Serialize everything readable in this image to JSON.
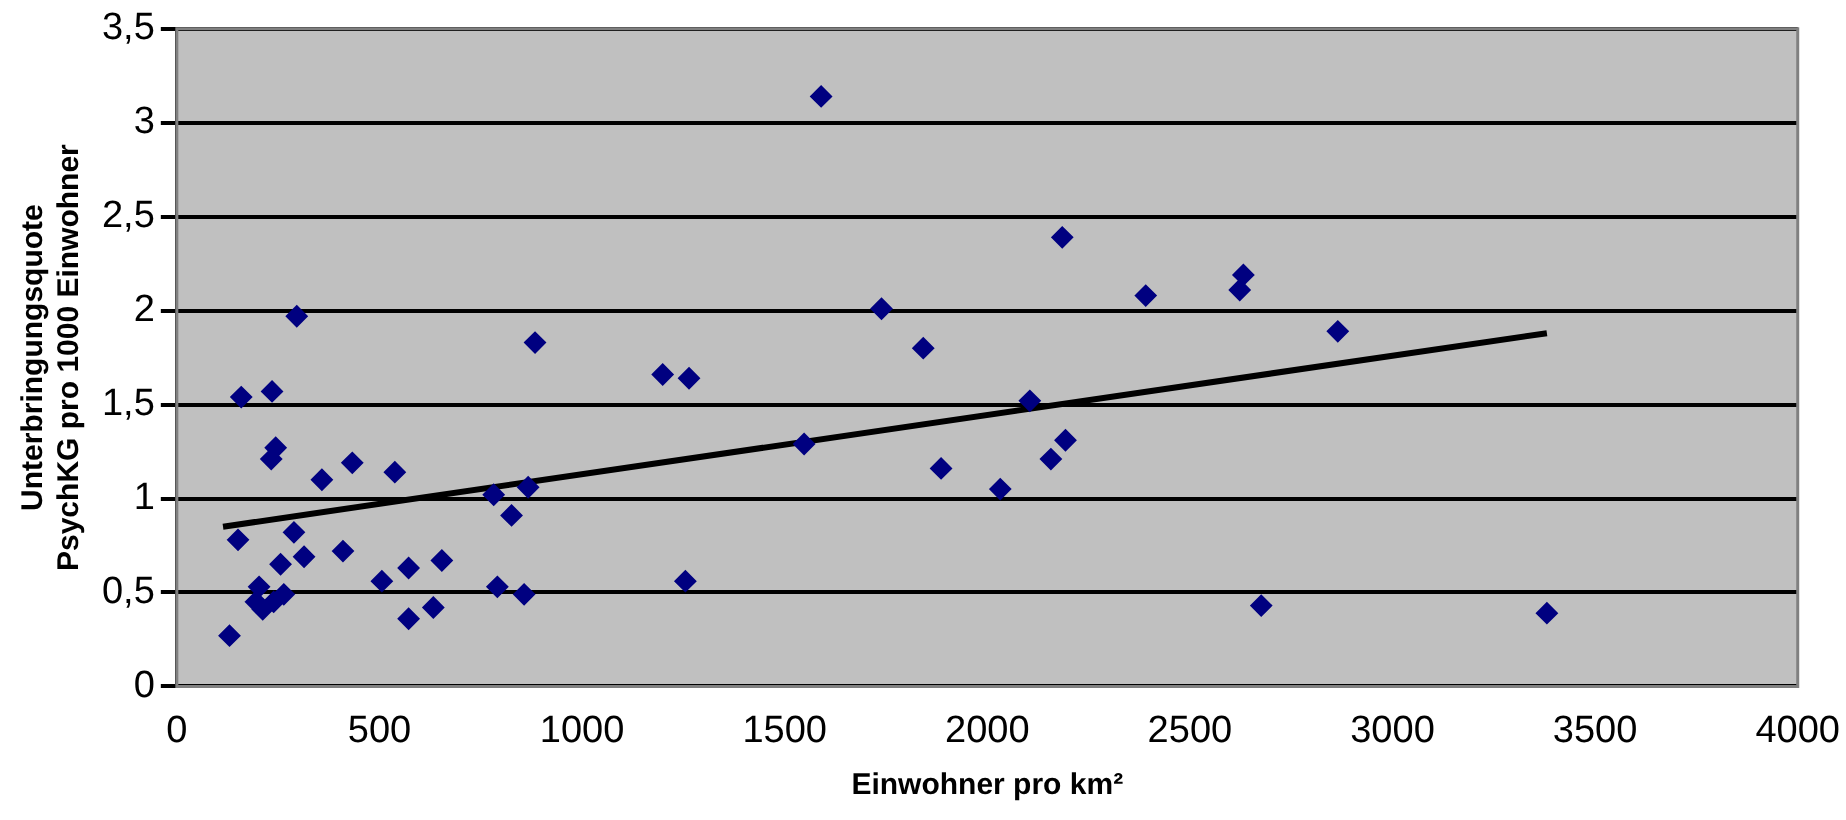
{
  "chart_data": {
    "type": "scatter",
    "xlabel": "Einwohner pro km²",
    "ylabel": "Unterbringungsquote\nPsychKG pro 1000 Einwohner",
    "xlim": [
      0,
      4000
    ],
    "xticks": [
      0,
      500,
      1000,
      1500,
      2000,
      2500,
      3000,
      3500,
      4000
    ],
    "ylim": [
      0,
      3.5
    ],
    "yticks": [
      0,
      {
        "value": 0.5,
        "label": "0,5"
      },
      1,
      {
        "value": 1.5,
        "label": "1,5"
      },
      2,
      {
        "value": 2.5,
        "label": "2,5"
      },
      3,
      {
        "value": 3.5,
        "label": "3,5"
      }
    ],
    "grid": "y",
    "legend": false,
    "marker": "diamond",
    "series": [
      {
        "color": "#000080",
        "x": [
          130,
          151,
          159,
          235,
          296,
          244,
          233,
          358,
          433,
          538,
          289,
          314,
          256,
          203,
          195,
          212,
          264,
          239,
          410,
          506,
          572,
          572,
          633,
          654,
          791,
          857,
          782,
          826,
          867,
          884,
          1199,
          1264,
          1255,
          1548,
          1590,
          1739,
          1842,
          1886,
          2032,
          2105,
          2157,
          2193,
          2185,
          2391,
          2632,
          2623,
          2865,
          2676,
          3381
        ],
        "values": [
          0.27,
          0.78,
          1.54,
          1.57,
          1.97,
          1.27,
          1.21,
          1.1,
          1.19,
          1.14,
          0.82,
          0.69,
          0.65,
          0.53,
          0.45,
          0.41,
          0.49,
          0.45,
          0.72,
          0.56,
          0.63,
          0.36,
          0.42,
          0.67,
          0.53,
          0.49,
          1.02,
          0.91,
          1.06,
          1.83,
          1.66,
          1.64,
          0.56,
          1.29,
          3.14,
          2.01,
          1.8,
          1.16,
          1.05,
          1.52,
          1.21,
          1.31,
          2.39,
          2.08,
          2.19,
          2.11,
          1.89,
          0.43,
          0.39
        ]
      },
      {
        "type": "line",
        "color": "#000000",
        "marker": "none",
        "x": [
          114,
          3381
        ],
        "values": [
          0.85,
          1.88
        ]
      }
    ]
  }
}
